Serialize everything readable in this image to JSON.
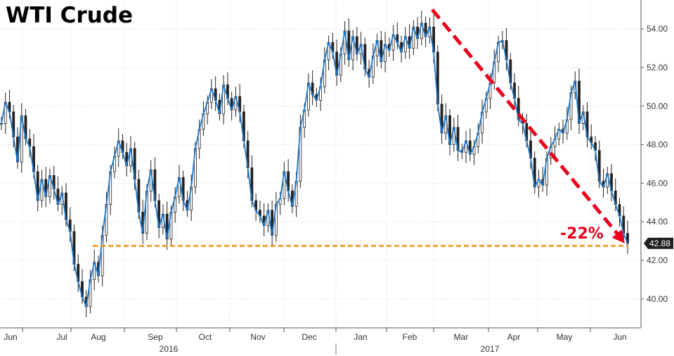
{
  "chart_data": {
    "type": "line",
    "title": "WTI Crude",
    "ylim": [
      38.5,
      55.5
    ],
    "y_ticks": [
      40.0,
      42.0,
      44.0,
      46.0,
      48.0,
      50.0,
      52.0,
      54.0
    ],
    "x_ticks": [
      "Jun",
      "Jul",
      "Aug",
      "Sep",
      "Oct",
      "Nov",
      "Dec",
      "Jan",
      "Feb",
      "Mar",
      "Apr",
      "May",
      "Jun"
    ],
    "year_labels": [
      "2016",
      "2017"
    ],
    "grid": true,
    "series": [
      {
        "values": [
          49.1,
          50.2,
          49.7,
          48.4,
          47.1,
          49.5,
          48.3,
          47.9,
          46.6,
          45.1,
          46.2,
          45.3,
          46.4,
          45.7,
          44.9,
          45.5,
          44.1,
          43.5,
          41.8,
          40.9,
          40.1,
          39.6,
          41.0,
          41.9,
          41.2,
          43.3,
          44.9,
          46.6,
          47.4,
          48.2,
          47.6,
          46.9,
          47.8,
          46.2,
          44.5,
          43.4,
          45.6,
          46.7,
          45.1,
          43.7,
          44.4,
          43.1,
          44.5,
          45.3,
          46.3,
          45.1,
          44.6,
          45.8,
          47.8,
          48.8,
          49.6,
          50.2,
          50.9,
          50.3,
          49.6,
          51.1,
          50.4,
          49.8,
          50.5,
          49.7,
          48.2,
          46.8,
          45.1,
          44.6,
          44.3,
          43.8,
          44.6,
          43.3,
          44.9,
          45.2,
          46.6,
          45.6,
          44.8,
          46.1,
          48.9,
          49.8,
          51.2,
          50.6,
          50.3,
          51.0,
          52.4,
          53.3,
          52.8,
          51.6,
          52.7,
          53.9,
          52.4,
          53.6,
          52.7,
          53.2,
          51.9,
          51.5,
          52.6,
          53.4,
          52.3,
          53.2,
          52.9,
          53.7,
          53.3,
          52.8,
          53.6,
          53.0,
          54.1,
          53.5,
          54.3,
          53.6,
          54.1,
          52.8,
          50.1,
          48.6,
          49.5,
          48.0,
          48.9,
          47.7,
          47.6,
          48.2,
          47.5,
          47.9,
          48.6,
          49.7,
          50.4,
          51.2,
          52.3,
          53.3,
          53.4,
          52.4,
          51.2,
          50.4,
          49.3,
          49.1,
          48.2,
          47.3,
          45.8,
          46.2,
          45.9,
          47.3,
          47.9,
          48.3,
          48.8,
          48.6,
          49.3,
          50.7,
          51.3,
          49.1,
          49.7,
          48.4,
          48.1,
          47.7,
          46.1,
          45.8,
          46.5,
          45.6,
          44.9,
          44.3,
          43.4,
          42.88
        ]
      }
    ],
    "annotations": {
      "support_level": 42.75,
      "trend_start_value": 55.0,
      "trend_end_value": 42.88,
      "change_label": "-22%",
      "last_value_label": "42.88"
    },
    "colors": {
      "line": "#1f78c8",
      "candle": "#222222",
      "support": "#f5900e",
      "trend": "#e8001c",
      "grid": "#d9d9d9",
      "last_label_bg": "#1f1f1f"
    }
  }
}
